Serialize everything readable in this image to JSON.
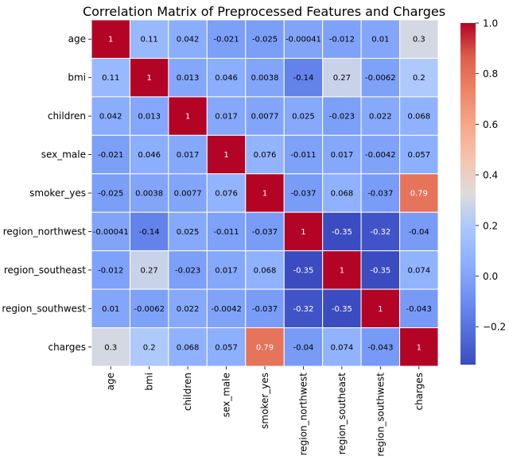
{
  "chart_data": {
    "type": "heatmap",
    "title": "Correlation Matrix of Preprocessed Features and Charges",
    "xlabel": "",
    "ylabel": "",
    "labels": [
      "age",
      "bmi",
      "children",
      "sex_male",
      "smoker_yes",
      "region_northwest",
      "region_southeast",
      "region_southwest",
      "charges"
    ],
    "matrix": [
      [
        1,
        0.11,
        0.042,
        -0.021,
        -0.025,
        -0.00041,
        -0.012,
        0.01,
        0.3
      ],
      [
        0.11,
        1,
        0.013,
        0.046,
        0.0038,
        -0.14,
        0.27,
        -0.0062,
        0.2
      ],
      [
        0.042,
        0.013,
        1,
        0.017,
        0.0077,
        0.025,
        -0.023,
        0.022,
        0.068
      ],
      [
        -0.021,
        0.046,
        0.017,
        1,
        0.076,
        -0.011,
        0.017,
        -0.0042,
        0.057
      ],
      [
        -0.025,
        0.0038,
        0.0077,
        0.076,
        1,
        -0.037,
        0.068,
        -0.037,
        0.79
      ],
      [
        -0.00041,
        -0.14,
        0.025,
        -0.011,
        -0.037,
        1,
        -0.35,
        -0.32,
        -0.04
      ],
      [
        -0.012,
        0.27,
        -0.023,
        0.017,
        0.068,
        -0.35,
        1,
        -0.35,
        0.074
      ],
      [
        0.01,
        -0.0062,
        0.022,
        -0.0042,
        -0.037,
        -0.32,
        -0.35,
        1,
        -0.043
      ],
      [
        0.3,
        0.2,
        0.068,
        0.057,
        0.79,
        -0.04,
        0.074,
        -0.043,
        1
      ]
    ],
    "annotations_on": true,
    "colormap": "coolwarm",
    "colorbar": {
      "min": -0.35,
      "max": 1.0,
      "ticks": [
        -0.2,
        0.0,
        0.2,
        0.4,
        0.6,
        0.8,
        1.0
      ],
      "tick_labels": [
        "−0.2",
        "0.0",
        "0.2",
        "0.4",
        "0.6",
        "0.8",
        "1.0"
      ]
    },
    "grid_lines": "white"
  }
}
